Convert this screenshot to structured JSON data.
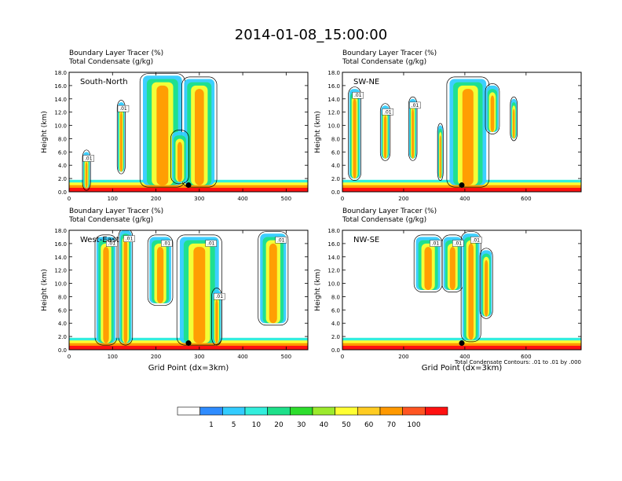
{
  "page": {
    "title": "2014-01-08_15:00:00"
  },
  "panel_left_text": [
    "Boundary Layer Tracer   (%)",
    "Total Condensate   (g/kg)"
  ],
  "ylabel": "Height (km)",
  "xlabel": "Grid Point (dx=3km)",
  "contour_note": "Total Condensate Contours: .01 to .01 by .000",
  "colorbar": {
    "colors": [
      "#ffffff",
      "#2f8cff",
      "#33ccff",
      "#33eedd",
      "#1ee08a",
      "#2dde2d",
      "#9cea2c",
      "#ffff33",
      "#ffcc22",
      "#ff9900",
      "#ff5522",
      "#ff1111"
    ],
    "labels": [
      "1",
      "5",
      "10",
      "20",
      "30",
      "40",
      "50",
      "60",
      "70",
      "100"
    ]
  },
  "chart_data": [
    {
      "type": "heatmap",
      "panel": "South-North",
      "title": [
        "Boundary Layer Tracer   (%)",
        "Total Condensate   (g/kg)"
      ],
      "ylabel": "Height (km)",
      "xlabel": "",
      "xlim": [
        0,
        550
      ],
      "ylim": [
        0,
        18
      ],
      "xticks": [
        "0",
        "100",
        "200",
        "300",
        "400",
        "500"
      ],
      "yticks": [
        "0.0",
        "2.0",
        "4.0",
        "6.0",
        "8.0",
        "10.0",
        "12.0",
        "14.0",
        "16.0",
        "18.0"
      ],
      "contour_labels": [
        ".01",
        ".01"
      ],
      "marker_x": 275
    },
    {
      "type": "heatmap",
      "panel": "SW-NE",
      "title": [
        "Boundary Layer Tracer   (%)",
        "Total Condensate   (g/kg)"
      ],
      "ylabel": "Height (km)",
      "xlabel": "",
      "xlim": [
        0,
        780
      ],
      "ylim": [
        0,
        18
      ],
      "xticks": [
        "0",
        "200",
        "400",
        "600"
      ],
      "yticks": [
        "0.0",
        "2.0",
        "4.0",
        "6.0",
        "8.0",
        "10.0",
        "12.0",
        "14.0",
        "16.0",
        "18.0"
      ],
      "contour_labels": [
        ".01",
        ".01",
        ".01"
      ],
      "marker_x": 390
    },
    {
      "type": "heatmap",
      "panel": "West-East",
      "title": [
        "Boundary Layer Tracer   (%)",
        "Total Condensate   (g/kg)"
      ],
      "ylabel": "Height (km)",
      "xlabel": "Grid Point (dx=3km)",
      "xlim": [
        0,
        550
      ],
      "ylim": [
        0,
        18
      ],
      "xticks": [
        "0",
        "100",
        "200",
        "300",
        "400",
        "500"
      ],
      "yticks": [
        "0.0",
        "2.0",
        "4.0",
        "6.0",
        "8.0",
        "10.0",
        "12.0",
        "14.0",
        "16.0",
        "18.0"
      ],
      "contour_labels": [
        ".01",
        ".01",
        ".01",
        ".01",
        ".01",
        ".01"
      ],
      "marker_x": 275
    },
    {
      "type": "heatmap",
      "panel": "NW-SE",
      "title": [
        "Boundary Layer Tracer   (%)",
        "Total Condensate   (g/kg)"
      ],
      "ylabel": "Height (km)",
      "xlabel": "Grid Point (dx=3km)",
      "xlim": [
        0,
        780
      ],
      "ylim": [
        0,
        18
      ],
      "xticks": [
        "0",
        "200",
        "400",
        "600"
      ],
      "yticks": [
        "0.0",
        "2.0",
        "4.0",
        "6.0",
        "8.0",
        "10.0",
        "12.0",
        "14.0",
        "16.0",
        "18.0"
      ],
      "contour_labels": [
        ".01",
        ".01",
        ".01"
      ],
      "marker_x": 390
    }
  ]
}
